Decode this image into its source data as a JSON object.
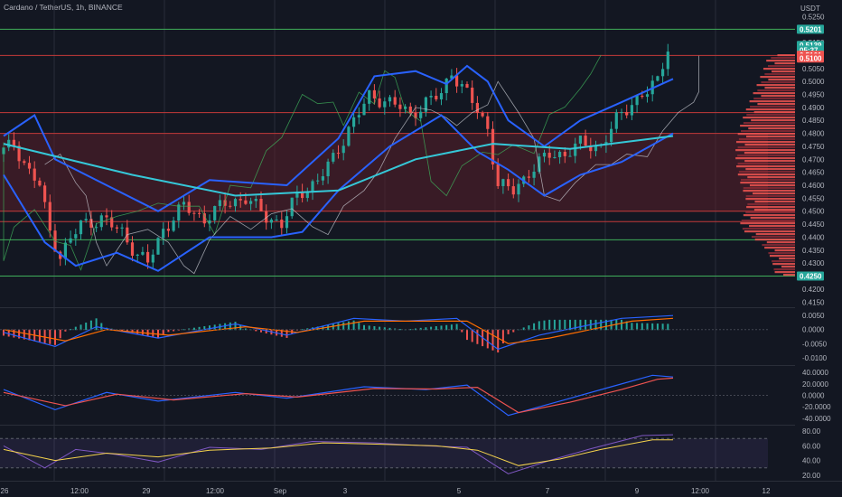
{
  "header": {
    "title": "Cardano / TetherUS, 1h, BINANCE",
    "currency": "USDT"
  },
  "colors": {
    "background": "#131722",
    "grid": "#2a2e39",
    "zone_red": "#5a1f2a",
    "bull": "#26a69a",
    "bear": "#ef5350",
    "bollinger": "#2962ff",
    "moving_average": "#35c8d8",
    "red_line": "#c43a3a",
    "green_line": "#3fae5a",
    "macd_line": "#2962ff",
    "signal_line": "#ff6d00",
    "rsi": "#7e57c2",
    "rsi_ma": "#f5d34c"
  },
  "price_axis": {
    "ticks": [
      "0.5250",
      "0.5150",
      "0.5050",
      "0.5000",
      "0.4950",
      "0.4900",
      "0.4850",
      "0.4800",
      "0.4750",
      "0.4700",
      "0.4650",
      "0.4600",
      "0.4550",
      "0.4500",
      "0.4450",
      "0.4400",
      "0.4350",
      "0.4300",
      "0.4200",
      "0.4150"
    ],
    "badges": [
      {
        "text": "0.5201",
        "color": "#26a69a"
      },
      {
        "text": "0.5139",
        "color": "#26a69a"
      },
      {
        "text": "05:37",
        "color": "#26a69a"
      },
      {
        "text": "0.5101",
        "color": "#ef5350"
      },
      {
        "text": "0.5100",
        "color": "#ef5350"
      },
      {
        "text": "0.4250",
        "color": "#26a69a"
      }
    ]
  },
  "macd_axis": {
    "ticks": [
      "0.0050",
      "0.0000",
      "-0.0050",
      "-0.0100"
    ]
  },
  "stoch_axis": {
    "ticks": [
      "40.0000",
      "20.0000",
      "0.0000",
      "-20.0000",
      "-40.0000"
    ]
  },
  "rsi_axis": {
    "ticks": [
      "80.00",
      "60.00",
      "40.00",
      "20.00"
    ]
  },
  "time_axis": {
    "labels": [
      "26",
      "12:00",
      "29",
      "12:00",
      "Sep",
      "3",
      "5",
      "7",
      "9",
      "12:00",
      "12"
    ]
  },
  "chart_data": {
    "type": "candlestick",
    "title": "Cardano / TetherUS, 1h, BINANCE",
    "ylabel": "USDT",
    "ylim": [
      0.413,
      0.53
    ],
    "horizontal_levels": [
      {
        "price": 0.5201,
        "color": "green"
      },
      {
        "price": 0.51,
        "color": "red"
      },
      {
        "price": 0.488,
        "color": "red"
      },
      {
        "price": 0.48,
        "color": "red"
      },
      {
        "price": 0.45,
        "color": "red"
      },
      {
        "price": 0.446,
        "color": "red"
      },
      {
        "price": 0.439,
        "color": "green"
      },
      {
        "price": 0.425,
        "color": "green"
      }
    ],
    "red_zone": [
      0.45,
      0.48
    ],
    "price_path": [
      [
        0,
        0.472
      ],
      [
        3,
        0.476
      ],
      [
        6,
        0.465
      ],
      [
        8,
        0.46
      ],
      [
        10,
        0.442
      ],
      [
        12,
        0.433
      ],
      [
        16,
        0.445
      ],
      [
        20,
        0.447
      ],
      [
        24,
        0.442
      ],
      [
        27,
        0.433
      ],
      [
        29,
        0.43
      ],
      [
        32,
        0.443
      ],
      [
        36,
        0.452
      ],
      [
        40,
        0.447
      ],
      [
        44,
        0.453
      ],
      [
        48,
        0.455
      ],
      [
        52,
        0.448
      ],
      [
        55,
        0.445
      ],
      [
        58,
        0.456
      ],
      [
        62,
        0.462
      ],
      [
        65,
        0.47
      ],
      [
        68,
        0.482
      ],
      [
        72,
        0.494
      ],
      [
        75,
        0.493
      ],
      [
        78,
        0.49
      ],
      [
        80,
        0.487
      ],
      [
        83,
        0.492
      ],
      [
        86,
        0.495
      ],
      [
        88,
        0.504
      ],
      [
        90,
        0.498
      ],
      [
        92,
        0.492
      ],
      [
        95,
        0.482
      ],
      [
        97,
        0.46
      ],
      [
        100,
        0.458
      ],
      [
        103,
        0.465
      ],
      [
        107,
        0.472
      ],
      [
        110,
        0.472
      ],
      [
        113,
        0.476
      ],
      [
        117,
        0.475
      ],
      [
        120,
        0.485
      ],
      [
        123,
        0.492
      ],
      [
        126,
        0.496
      ],
      [
        128,
        0.5
      ],
      [
        130,
        0.5139
      ]
    ],
    "candle_count": 130,
    "x_ticks": [
      "26",
      "12:00",
      "29",
      "12:00",
      "Sep",
      "3",
      "5",
      "7",
      "9",
      "12:00",
      "12"
    ],
    "moving_average": [
      [
        0,
        0.476
      ],
      [
        25,
        0.464
      ],
      [
        45,
        0.456
      ],
      [
        65,
        0.458
      ],
      [
        80,
        0.47
      ],
      [
        95,
        0.476
      ],
      [
        110,
        0.474
      ],
      [
        130,
        0.479
      ]
    ],
    "bollinger_upper": [
      [
        0,
        0.479
      ],
      [
        6,
        0.487
      ],
      [
        10,
        0.47
      ],
      [
        20,
        0.46
      ],
      [
        30,
        0.45
      ],
      [
        40,
        0.462
      ],
      [
        55,
        0.46
      ],
      [
        65,
        0.478
      ],
      [
        72,
        0.502
      ],
      [
        80,
        0.504
      ],
      [
        86,
        0.499
      ],
      [
        90,
        0.506
      ],
      [
        94,
        0.5
      ],
      [
        98,
        0.485
      ],
      [
        105,
        0.475
      ],
      [
        112,
        0.485
      ],
      [
        120,
        0.492
      ],
      [
        130,
        0.501
      ]
    ],
    "bollinger_lower": [
      [
        0,
        0.464
      ],
      [
        8,
        0.438
      ],
      [
        14,
        0.429
      ],
      [
        22,
        0.434
      ],
      [
        30,
        0.427
      ],
      [
        40,
        0.44
      ],
      [
        52,
        0.44
      ],
      [
        58,
        0.442
      ],
      [
        65,
        0.458
      ],
      [
        75,
        0.475
      ],
      [
        85,
        0.487
      ],
      [
        92,
        0.473
      ],
      [
        98,
        0.466
      ],
      [
        105,
        0.456
      ],
      [
        112,
        0.464
      ],
      [
        120,
        0.469
      ],
      [
        130,
        0.48
      ]
    ],
    "volume_profile": "right-aligned horizontal histogram",
    "macd": {
      "line": [
        [
          0,
          -0.001
        ],
        [
          10,
          -0.006
        ],
        [
          18,
          0.001
        ],
        [
          30,
          -0.003
        ],
        [
          45,
          0.002
        ],
        [
          55,
          -0.002
        ],
        [
          68,
          0.004
        ],
        [
          78,
          0.003
        ],
        [
          88,
          0.004
        ],
        [
          96,
          -0.007
        ],
        [
          104,
          -0.002
        ],
        [
          112,
          0.001
        ],
        [
          120,
          0.004
        ],
        [
          130,
          0.005
        ]
      ],
      "signal": [
        [
          0,
          0.0
        ],
        [
          12,
          -0.004
        ],
        [
          20,
          0.0
        ],
        [
          32,
          -0.002
        ],
        [
          47,
          0.001
        ],
        [
          57,
          -0.001
        ],
        [
          70,
          0.003
        ],
        [
          80,
          0.003
        ],
        [
          90,
          0.003
        ],
        [
          98,
          -0.005
        ],
        [
          106,
          -0.003
        ],
        [
          114,
          0.0
        ],
        [
          122,
          0.003
        ],
        [
          130,
          0.004
        ]
      ],
      "ylim": [
        -0.012,
        0.007
      ]
    },
    "oscillator": {
      "line": [
        [
          0,
          10
        ],
        [
          10,
          -25
        ],
        [
          20,
          5
        ],
        [
          30,
          -10
        ],
        [
          45,
          5
        ],
        [
          55,
          -5
        ],
        [
          70,
          15
        ],
        [
          82,
          10
        ],
        [
          90,
          18
        ],
        [
          98,
          -35
        ],
        [
          108,
          -10
        ],
        [
          118,
          15
        ],
        [
          126,
          35
        ],
        [
          130,
          32
        ]
      ],
      "signal": [
        [
          0,
          5
        ],
        [
          12,
          -18
        ],
        [
          22,
          2
        ],
        [
          33,
          -8
        ],
        [
          47,
          3
        ],
        [
          57,
          -3
        ],
        [
          72,
          12
        ],
        [
          84,
          11
        ],
        [
          92,
          14
        ],
        [
          100,
          -30
        ],
        [
          110,
          -12
        ],
        [
          120,
          10
        ],
        [
          127,
          28
        ],
        [
          130,
          30
        ]
      ],
      "ylim": [
        -48,
        48
      ]
    },
    "rsi": {
      "line": [
        [
          0,
          60
        ],
        [
          8,
          30
        ],
        [
          14,
          55
        ],
        [
          22,
          48
        ],
        [
          30,
          38
        ],
        [
          40,
          58
        ],
        [
          50,
          55
        ],
        [
          60,
          66
        ],
        [
          72,
          64
        ],
        [
          82,
          60
        ],
        [
          90,
          58
        ],
        [
          98,
          22
        ],
        [
          106,
          40
        ],
        [
          114,
          56
        ],
        [
          124,
          74
        ],
        [
          130,
          75
        ]
      ],
      "ma": [
        [
          0,
          55
        ],
        [
          10,
          40
        ],
        [
          20,
          50
        ],
        [
          30,
          45
        ],
        [
          40,
          54
        ],
        [
          52,
          57
        ],
        [
          62,
          64
        ],
        [
          74,
          62
        ],
        [
          84,
          60
        ],
        [
          92,
          54
        ],
        [
          100,
          33
        ],
        [
          108,
          42
        ],
        [
          116,
          55
        ],
        [
          126,
          68
        ],
        [
          130,
          68
        ]
      ],
      "ylim": [
        15,
        85
      ],
      "band": [
        30,
        70
      ]
    }
  }
}
